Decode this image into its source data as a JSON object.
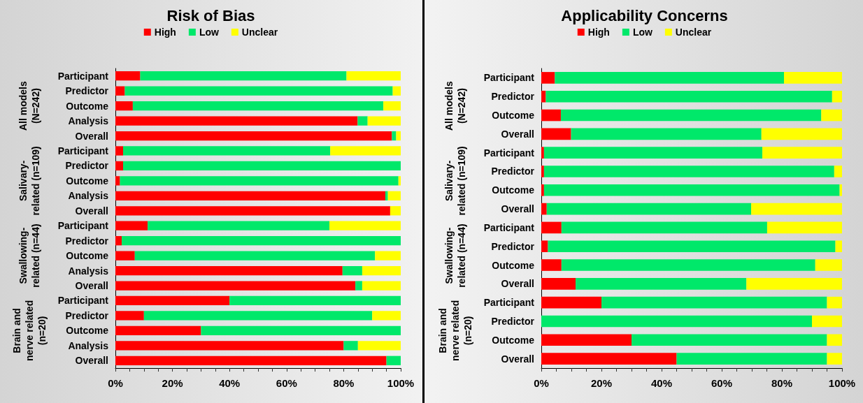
{
  "chart_data": [
    {
      "type": "bar",
      "orientation": "horizontal",
      "stacked": true,
      "title": "Risk of Bias",
      "legend": "top",
      "grid": false,
      "categories": [
        "Participant",
        "Predictor",
        "Outcome",
        "Analysis",
        "Overall",
        "Participant",
        "Predictor",
        "Outcome",
        "Analysis",
        "Overall",
        "Participant",
        "Predictor",
        "Outcome",
        "Analysis",
        "Overall",
        "Participant",
        "Predictor",
        "Outcome",
        "Analysis",
        "Overall"
      ],
      "annotations": [
        "All models (N=242)",
        "Salivary-related (n=109)",
        "Swallowing-related (n=44)",
        "Brain and nerve related (n=20)"
      ],
      "xlim": [
        0,
        100
      ],
      "xticks": [
        {
          "value": 0,
          "label": "0%"
        },
        {
          "value": 5,
          "label": null
        },
        {
          "value": 10,
          "label": null
        },
        {
          "value": 15,
          "label": null
        },
        {
          "value": 20,
          "label": "20%"
        },
        {
          "value": 25,
          "label": null
        },
        {
          "value": 30,
          "label": null
        },
        {
          "value": 35,
          "label": null
        },
        {
          "value": 40,
          "label": "40%"
        },
        {
          "value": 45,
          "label": null
        },
        {
          "value": 50,
          "label": null
        },
        {
          "value": 55,
          "label": null
        },
        {
          "value": 60,
          "label": "60%"
        },
        {
          "value": 65,
          "label": null
        },
        {
          "value": 70,
          "label": null
        },
        {
          "value": 75,
          "label": null
        },
        {
          "value": 80,
          "label": "80%"
        },
        {
          "value": 85,
          "label": null
        },
        {
          "value": 90,
          "label": null
        },
        {
          "value": 95,
          "label": null
        },
        {
          "value": 100,
          "label": "100%"
        }
      ],
      "series": [
        {
          "name": "High",
          "color": "#ff0000",
          "values": [
            8.7,
            3.3,
            6.1,
            84.9,
            96.9,
            2.7,
            2.7,
            1.6,
            94.6,
            96.3,
            11.3,
            2.2,
            6.8,
            79.6,
            84.1,
            40,
            10,
            30,
            80,
            95
          ]
        },
        {
          "name": "Low",
          "color": "#00e86a",
          "values": [
            72.3,
            93.9,
            87.8,
            3.5,
            1.5,
            72.6,
            97.3,
            97.6,
            0.9,
            0,
            63.7,
            97.8,
            84.2,
            6.9,
            2.4,
            60,
            80,
            70,
            5,
            5
          ]
        },
        {
          "name": "Unclear",
          "color": "#ffff00",
          "values": [
            19.0,
            2.8,
            6.1,
            11.6,
            1.6,
            24.7,
            0,
            0.8,
            4.5,
            3.7,
            25.0,
            0,
            9.0,
            13.5,
            13.5,
            0,
            10,
            0,
            15,
            0
          ]
        }
      ]
    },
    {
      "type": "bar",
      "orientation": "horizontal",
      "stacked": true,
      "title": "Applicability Concerns",
      "legend": "top",
      "grid": false,
      "categories": [
        "Participant",
        "Predictor",
        "Outcome",
        "Overall",
        "Participant",
        "Predictor",
        "Outcome",
        "Overall",
        "Participant",
        "Predictor",
        "Outcome",
        "Overall",
        "Participant",
        "Predictor",
        "Outcome",
        "Overall"
      ],
      "annotations": [
        "All models (N=242)",
        "Salivary-related (n=109)",
        "Swallowing-related (n=44)",
        "Brain and nerve related (n=20)"
      ],
      "xlim": [
        0,
        100
      ],
      "xticks": [
        {
          "value": 0,
          "label": "0%"
        },
        {
          "value": 5,
          "label": null
        },
        {
          "value": 10,
          "label": null
        },
        {
          "value": 15,
          "label": null
        },
        {
          "value": 20,
          "label": "20%"
        },
        {
          "value": 25,
          "label": null
        },
        {
          "value": 30,
          "label": null
        },
        {
          "value": 35,
          "label": null
        },
        {
          "value": 40,
          "label": "40%"
        },
        {
          "value": 45,
          "label": null
        },
        {
          "value": 50,
          "label": null
        },
        {
          "value": 55,
          "label": null
        },
        {
          "value": 60,
          "label": "60%"
        },
        {
          "value": 65,
          "label": null
        },
        {
          "value": 70,
          "label": null
        },
        {
          "value": 75,
          "label": null
        },
        {
          "value": 80,
          "label": "80%"
        },
        {
          "value": 85,
          "label": null
        },
        {
          "value": 90,
          "label": null
        },
        {
          "value": 95,
          "label": null
        },
        {
          "value": 100,
          "label": "100%"
        }
      ],
      "series": [
        {
          "name": "High",
          "color": "#ff0000",
          "values": [
            4.5,
            1.5,
            6.5,
            9.9,
            0.9,
            0.9,
            0.9,
            1.8,
            6.7,
            2.2,
            6.7,
            11.4,
            20,
            0,
            30,
            45
          ]
        },
        {
          "name": "Low",
          "color": "#00e86a",
          "values": [
            76.2,
            95.2,
            86.6,
            63.3,
            72.6,
            96.5,
            98.3,
            68.0,
            68.4,
            95.6,
            84.4,
            56.8,
            75,
            90,
            65,
            50
          ]
        },
        {
          "name": "Unclear",
          "color": "#ffff00",
          "values": [
            19.3,
            3.3,
            6.9,
            26.8,
            26.5,
            2.6,
            0.8,
            30.2,
            24.9,
            2.2,
            8.9,
            31.8,
            5,
            10,
            5,
            5
          ]
        }
      ]
    }
  ]
}
